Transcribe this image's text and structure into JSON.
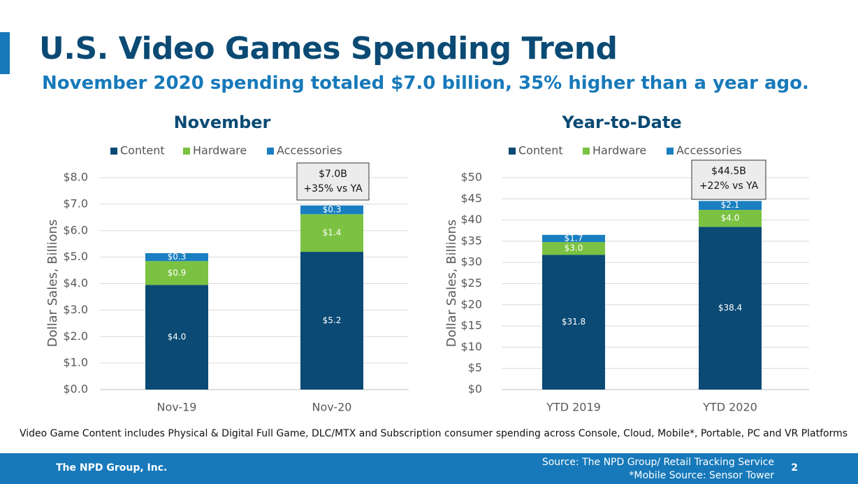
{
  "title": "U.S. Video Games Spending Trend",
  "subtitle": "November 2020 spending totaled $7.0 billion, 35% higher than a year ago.",
  "footnote": "Video Game Content includes Physical & Digital Full Game, DLC/MTX and Subscription consumer spending across Console, Cloud, Mobile*, Portable, PC and VR Platforms",
  "footer": {
    "company": "The NPD Group, Inc.",
    "source_line1": "Source: The NPD Group/ Retail Tracking Service",
    "source_line2": "*Mobile Source: Sensor Tower",
    "page_number": "2"
  },
  "colors": {
    "content": "#0a4a74",
    "hardware": "#7cc242",
    "accessories": "#1a7fc1",
    "title": "#0a4a74",
    "accent": "#1779ba"
  },
  "chart_data": [
    {
      "type": "bar",
      "stacked": true,
      "title": "November",
      "ylabel": "Dollar Sales, Billions",
      "ylim": [
        0,
        8
      ],
      "y_ticks": [
        "$0.0",
        "$1.0",
        "$2.0",
        "$3.0",
        "$4.0",
        "$5.0",
        "$6.0",
        "$7.0",
        "$8.0"
      ],
      "categories": [
        "Nov-19",
        "Nov-20"
      ],
      "legend": [
        "Content",
        "Hardware",
        "Accessories"
      ],
      "legend_position": "top",
      "series": [
        {
          "name": "Content",
          "values": [
            3.95,
            5.2
          ],
          "labels": [
            "$4.0",
            "$5.2"
          ]
        },
        {
          "name": "Hardware",
          "values": [
            0.9,
            1.42
          ],
          "labels": [
            "$0.9",
            "$1.4"
          ]
        },
        {
          "name": "Accessories",
          "values": [
            0.3,
            0.33
          ],
          "labels": [
            "$0.3",
            "$0.3"
          ]
        }
      ],
      "callout": {
        "line1": "$7.0B",
        "line2": "+35% vs YA",
        "category_index": 1
      }
    },
    {
      "type": "bar",
      "stacked": true,
      "title": "Year-to-Date",
      "ylabel": "Dollar Sales, Billions",
      "ylim": [
        0,
        50
      ],
      "y_ticks": [
        "$0",
        "$5",
        "$10",
        "$15",
        "$20",
        "$25",
        "$30",
        "$35",
        "$40",
        "$45",
        "$50"
      ],
      "categories": [
        "YTD 2019",
        "YTD 2020"
      ],
      "legend": [
        "Content",
        "Hardware",
        "Accessories"
      ],
      "legend_position": "top",
      "series": [
        {
          "name": "Content",
          "values": [
            31.8,
            38.4
          ],
          "labels": [
            "$31.8",
            "$38.4"
          ]
        },
        {
          "name": "Hardware",
          "values": [
            3.0,
            4.0
          ],
          "labels": [
            "$3.0",
            "$4.0"
          ]
        },
        {
          "name": "Accessories",
          "values": [
            1.7,
            2.1
          ],
          "labels": [
            "$1.7",
            "$2.1"
          ]
        }
      ],
      "callout": {
        "line1": "$44.5B",
        "line2": "+22% vs YA",
        "category_index": 1
      }
    }
  ]
}
